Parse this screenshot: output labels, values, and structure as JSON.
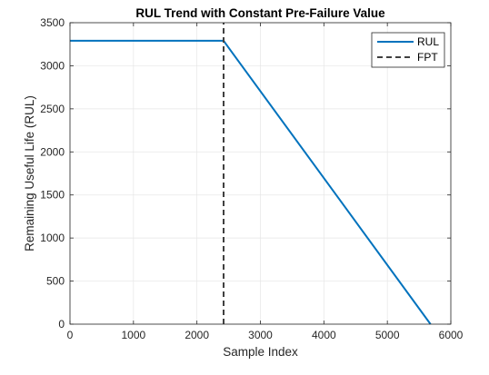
{
  "chart_data": {
    "type": "line",
    "title": "RUL Trend with Constant Pre-Failure Value",
    "xlabel": "Sample Index",
    "ylabel": "Remaining Useful Life (RUL)",
    "xlim": [
      0,
      6000
    ],
    "ylim": [
      0,
      3500
    ],
    "xticks": [
      0,
      1000,
      2000,
      3000,
      4000,
      5000,
      6000
    ],
    "yticks": [
      0,
      500,
      1000,
      1500,
      2000,
      2500,
      3000,
      3500
    ],
    "xtick_labels": [
      "0",
      "1000",
      "2000",
      "3000",
      "4000",
      "5000",
      "6000"
    ],
    "ytick_labels": [
      "0",
      "500",
      "1000",
      "1500",
      "2000",
      "2500",
      "3000",
      "3500"
    ],
    "grid": true,
    "legend_position": "top-right",
    "series": [
      {
        "name": "RUL",
        "style": "solid",
        "color": "#0072BD",
        "x": [
          0,
          2420,
          5680
        ],
        "y": [
          3290,
          3290,
          0
        ]
      },
      {
        "name": "FPT",
        "style": "dashed",
        "color": "#404040",
        "x": [
          2420,
          2420
        ],
        "y": [
          0,
          3500
        ]
      }
    ]
  }
}
